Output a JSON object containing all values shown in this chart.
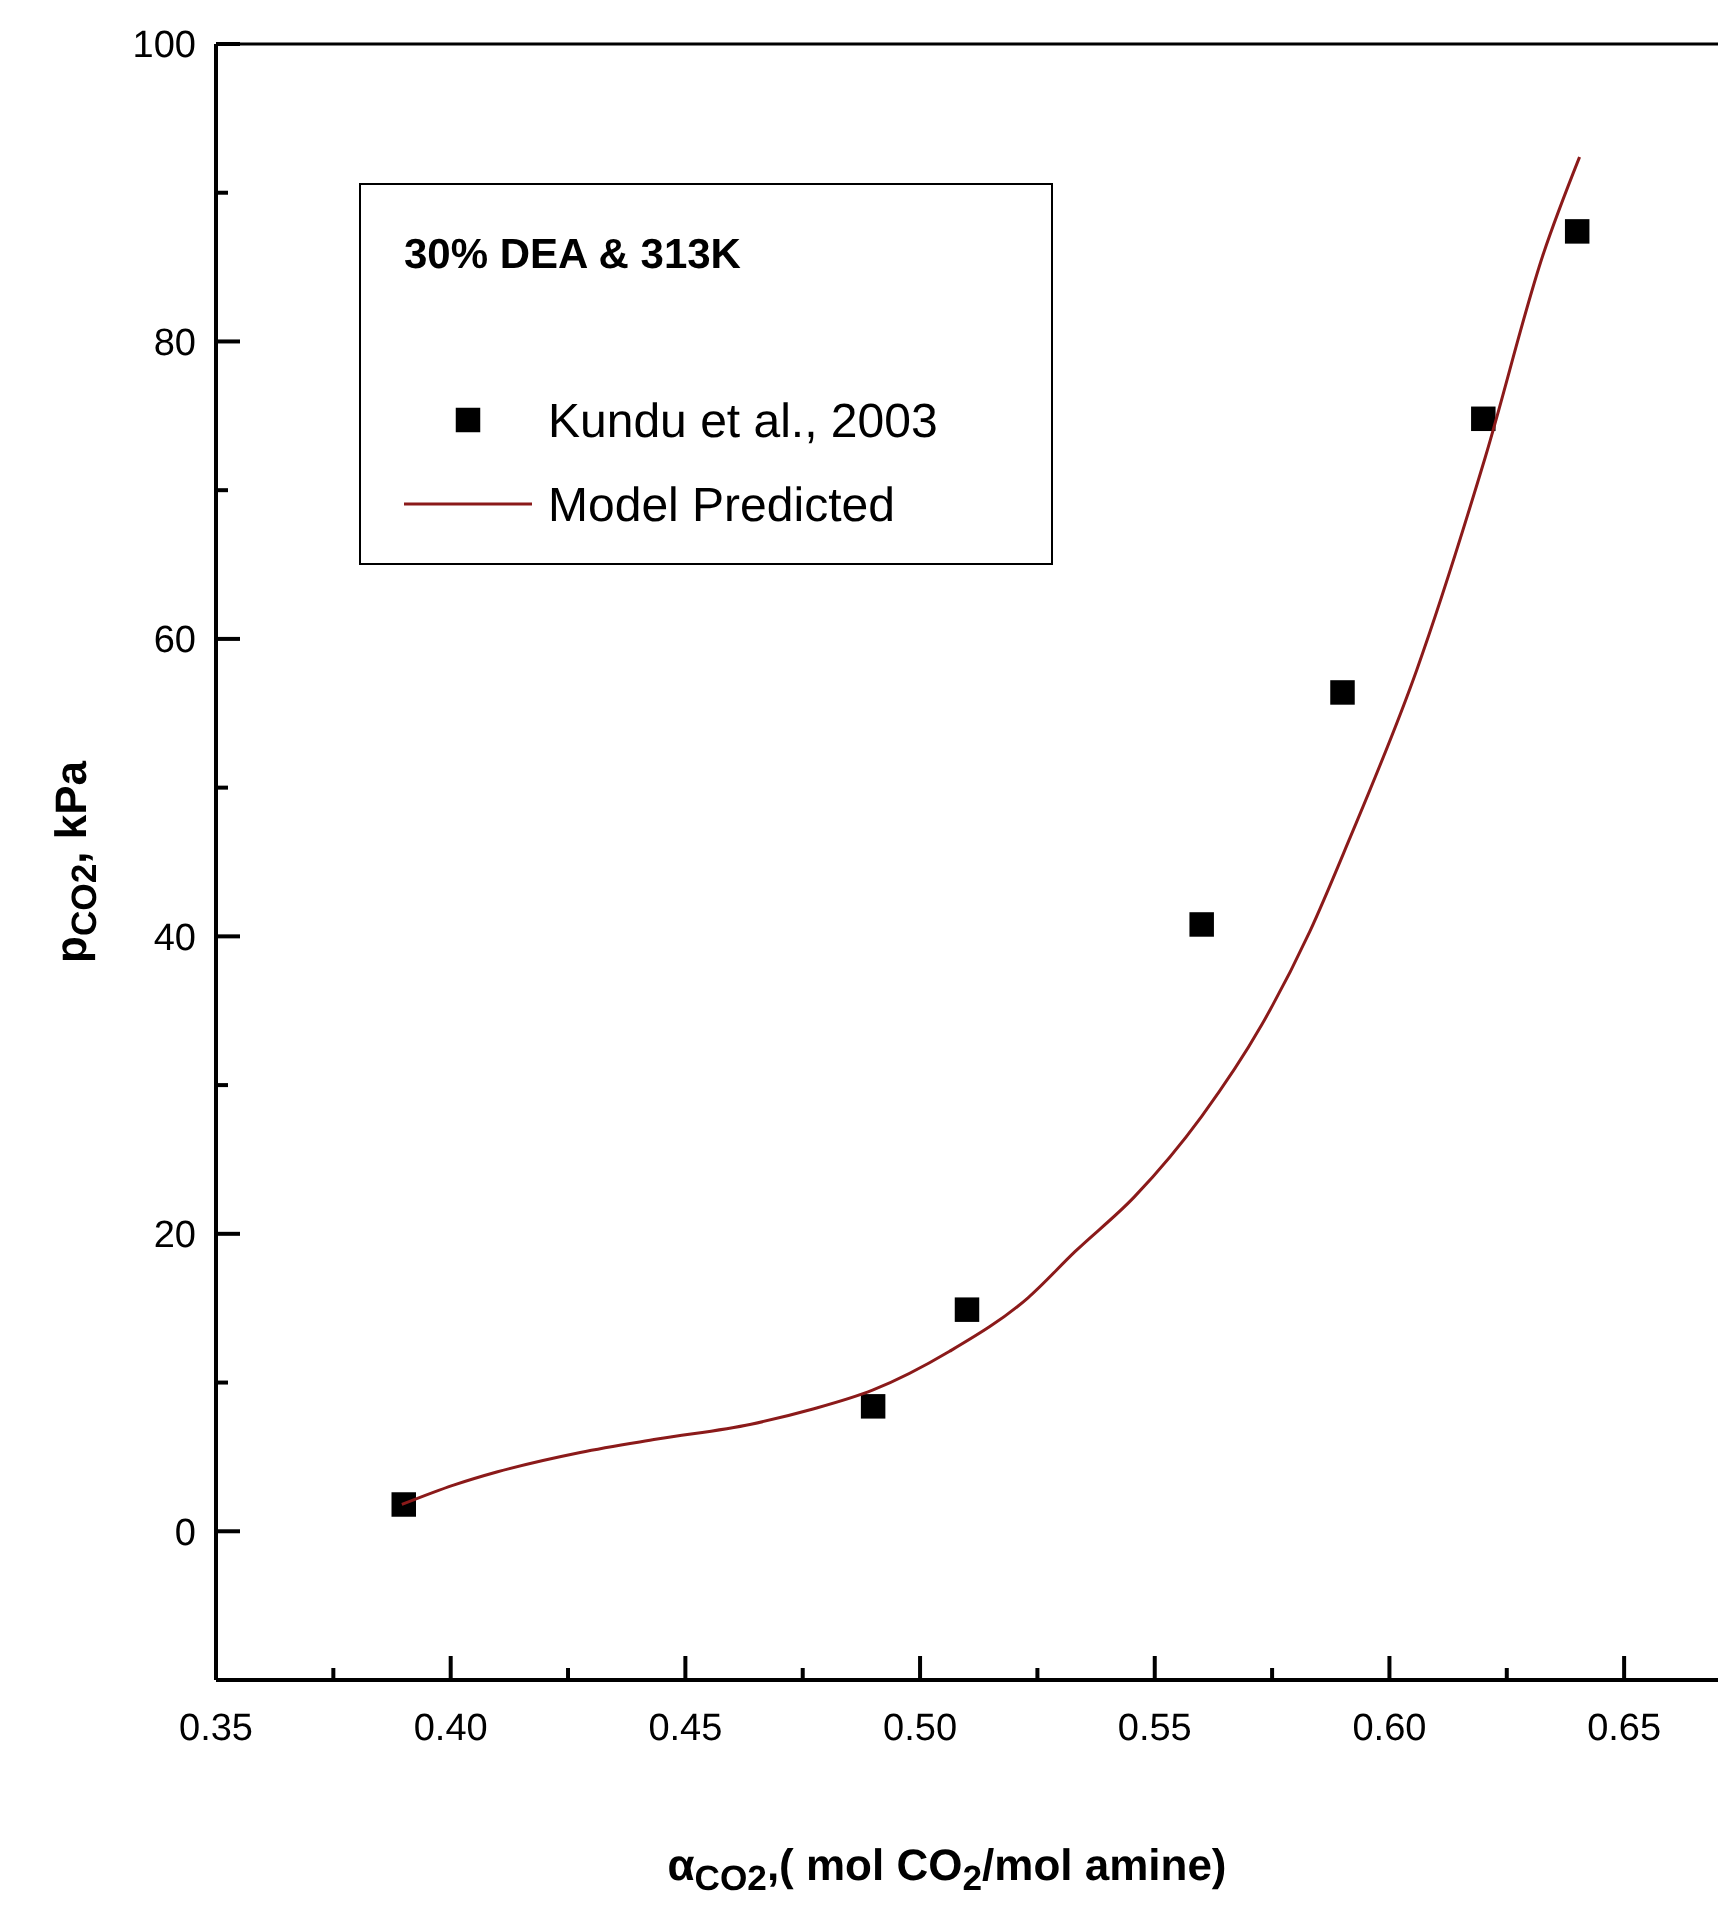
{
  "chart_data": {
    "type": "scatter",
    "xlabel": "α$_{CO2}$,( mol CO$_{2}$/mol amine)",
    "ylabel": "p$_{CO2}$, kPa",
    "legend_title": "30% DEA & 313K",
    "xlim": [
      0.35,
      0.67
    ],
    "xticks": [
      0.35,
      {
        "value": 0.375,
        "label": null
      },
      "0.40",
      {
        "value": 0.425,
        "label": null
      },
      0.45,
      {
        "value": 0.475,
        "label": null
      },
      "0.50",
      {
        "value": 0.525,
        "label": null
      },
      0.55,
      {
        "value": 0.575,
        "label": null
      },
      "0.60",
      {
        "value": 0.625,
        "label": null
      },
      0.65
    ],
    "ylim": [
      -10,
      100
    ],
    "yticks": [
      0,
      {
        "value": 10,
        "label": null
      },
      20,
      {
        "value": 30,
        "label": null
      },
      40,
      {
        "value": 50,
        "label": null
      },
      60,
      {
        "value": 70,
        "label": null
      },
      80,
      {
        "value": 90,
        "label": null
      },
      100
    ],
    "legend": "top left",
    "grid": false,
    "series": [
      {
        "name": "Kundu et al., 2003",
        "marker": "square",
        "color": "#000000",
        "x": [
          0.39,
          0.49,
          0.51,
          0.56,
          0.59,
          0.62,
          0.64
        ],
        "values": [
          1.8,
          8.4,
          14.9,
          40.8,
          56.4,
          74.8,
          87.4
        ]
      },
      {
        "name": "Model Predicted",
        "type": "line",
        "marker": "none",
        "line_style": "solid",
        "color": "#8b1a1a",
        "x": [
          0.3896,
          0.4006,
          0.41,
          0.4276,
          0.444,
          0.464,
          0.477,
          0.49,
          0.5063,
          0.523,
          0.533,
          0.5457,
          0.56,
          0.5727,
          0.583,
          0.5913,
          0.6058,
          0.6204,
          0.6328,
          0.6405
        ],
        "values": [
          1.8,
          3.1,
          4.0,
          5.3,
          6.2,
          7.2,
          8.2,
          9.5,
          12.1,
          15.7,
          18.8,
          22.5,
          27.9,
          34.0,
          40.3,
          46.4,
          57.9,
          72.2,
          85.9,
          92.4
        ]
      }
    ]
  }
}
